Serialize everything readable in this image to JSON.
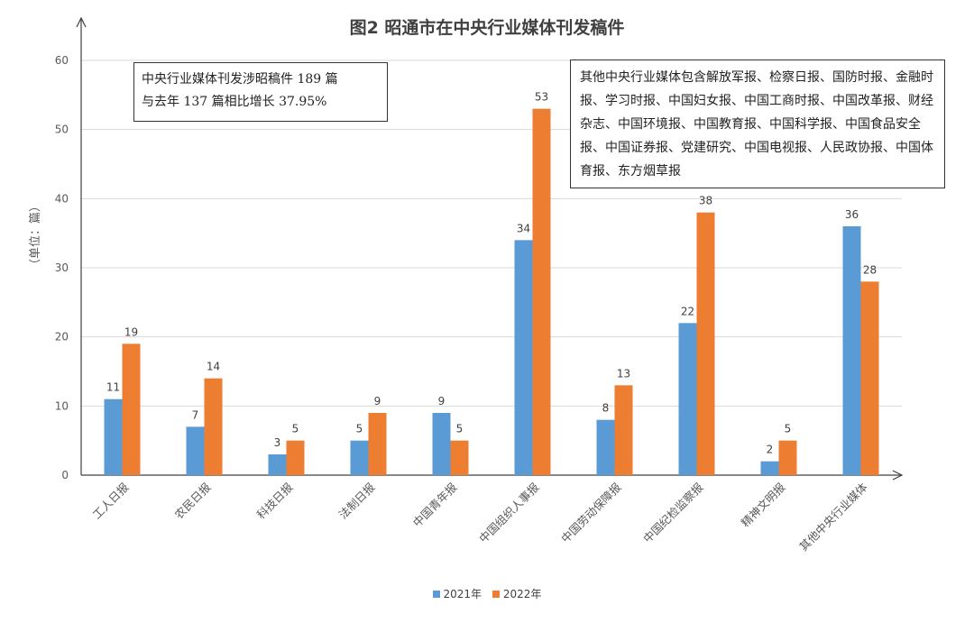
{
  "chart_data": {
    "type": "bar",
    "title": "图2 昭通市在中央行业媒体刊发稿件",
    "ylabel": "（单位：篇）",
    "xlabel": "",
    "ylim": [
      0,
      60
    ],
    "yticks": [
      0,
      10,
      20,
      30,
      40,
      50,
      60
    ],
    "grid": true,
    "legend_position": "bottom",
    "categories": [
      "工人日报",
      "农民日报",
      "科技日报",
      "法制日报",
      "中国青年报",
      "中国组织人事报",
      "中国劳动保障报",
      "中国纪检监察报",
      "精神文明报",
      "其他中央行业媒体"
    ],
    "series": [
      {
        "name": "2021年",
        "color": "#5b9bd5",
        "values": [
          11,
          7,
          3,
          5,
          9,
          34,
          8,
          22,
          2,
          36
        ]
      },
      {
        "name": "2022年",
        "color": "#ed7d31",
        "values": [
          19,
          14,
          5,
          9,
          5,
          53,
          13,
          38,
          5,
          28
        ]
      }
    ],
    "annotations": {
      "summary_line1": "中央行业媒体刊发涉昭稿件 189 篇",
      "summary_line2": "与去年 137 篇相比增长 37.95%",
      "other_media_note": "其他中央行业媒体包含解放军报、检察日报、国防时报、金融时报、学习时报、中国妇女报、中国工商时报、中国改革报、财经杂志、中国环境报、中国教育报、中国科学报、中国食品安全报、中国证券报、党建研究、中国电视报、人民政协报、中国体育报、东方烟草报"
    }
  }
}
